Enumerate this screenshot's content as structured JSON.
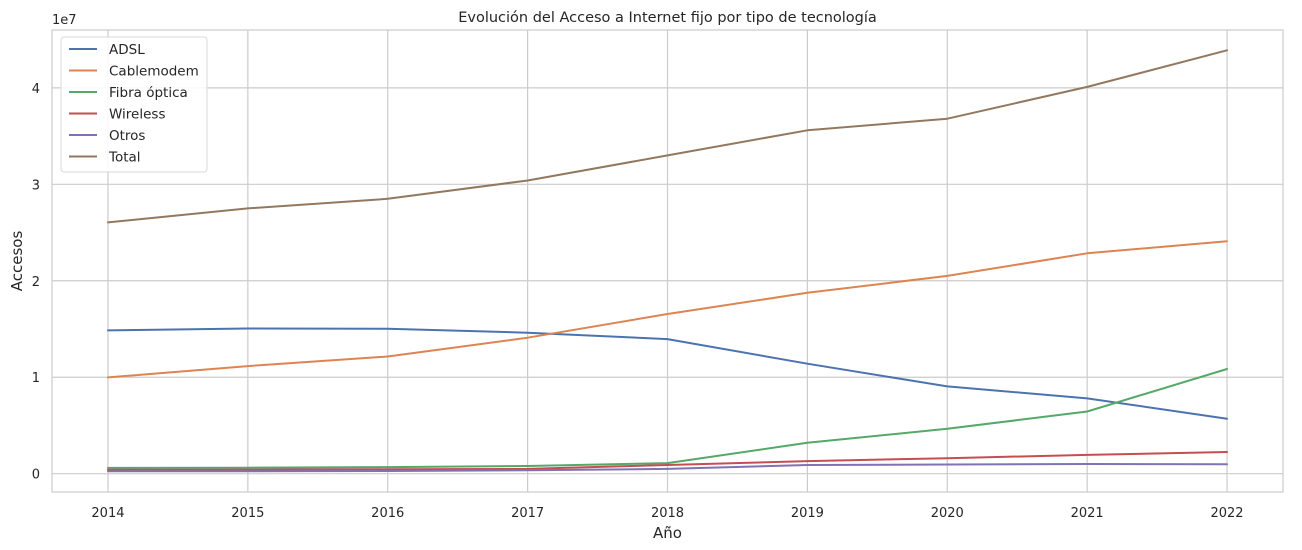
{
  "chart_data": {
    "type": "line",
    "title": "Evolución del Acceso a Internet fijo por tipo de tecnología",
    "xlabel": "Año",
    "ylabel": "Accesos",
    "y_offset_label": "1e7",
    "x": [
      2014,
      2015,
      2016,
      2017,
      2018,
      2019,
      2020,
      2021,
      2022
    ],
    "xlim": [
      2013.6,
      2022.4
    ],
    "ylim": [
      -0.19,
      4.6
    ],
    "y_ticks": [
      0,
      1,
      2,
      3,
      4
    ],
    "grid": true,
    "legend_position": "top-left",
    "series": [
      {
        "name": "ADSL",
        "color": "#4c72b0",
        "values": [
          1.485,
          1.505,
          1.502,
          1.462,
          1.395,
          1.14,
          0.905,
          0.78,
          0.57
        ]
      },
      {
        "name": "Cablemodem",
        "color": "#dd8452",
        "values": [
          0.998,
          1.115,
          1.215,
          1.41,
          1.655,
          1.875,
          2.05,
          2.285,
          2.41
        ]
      },
      {
        "name": "Fibra óptica",
        "color": "#55a868",
        "values": [
          0.06,
          0.062,
          0.068,
          0.08,
          0.11,
          0.32,
          0.465,
          0.645,
          1.085
        ]
      },
      {
        "name": "Wireless",
        "color": "#c44e52",
        "values": [
          0.04,
          0.042,
          0.045,
          0.05,
          0.09,
          0.13,
          0.16,
          0.195,
          0.225
        ]
      },
      {
        "name": "Otros",
        "color": "#8172b3",
        "values": [
          0.025,
          0.026,
          0.028,
          0.035,
          0.05,
          0.09,
          0.095,
          0.1,
          0.098
        ]
      },
      {
        "name": "Total",
        "color": "#937860",
        "values": [
          2.605,
          2.75,
          2.85,
          3.04,
          3.3,
          3.56,
          3.68,
          4.01,
          4.39
        ]
      }
    ]
  }
}
